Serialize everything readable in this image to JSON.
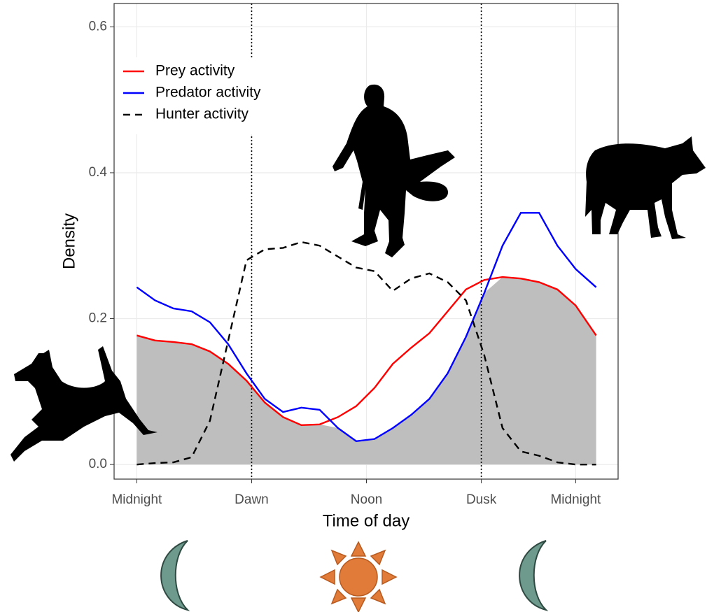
{
  "chart_data": {
    "type": "line",
    "x_label": "Time of day",
    "y_label": "Density",
    "xlim": [
      -0.31,
      6.58
    ],
    "ylim": [
      -0.02,
      0.632
    ],
    "xticks": [
      {
        "value": 0,
        "label": "Midnight"
      },
      {
        "value": 1.57,
        "label": "Dawn"
      },
      {
        "value": 3.14,
        "label": "Noon"
      },
      {
        "value": 4.71,
        "label": "Dusk"
      },
      {
        "value": 6.0,
        "label": "Midnight"
      }
    ],
    "yticks": [
      {
        "value": 0,
        "label": "0.0"
      },
      0.2,
      0.4,
      0.6
    ],
    "grid": true,
    "legend": "top-left",
    "overlap_color": "#bebebe",
    "x": [
      0,
      0.25,
      0.5,
      0.75,
      1.0,
      1.25,
      1.5,
      1.75,
      2.0,
      2.25,
      2.5,
      2.75,
      3.0,
      3.25,
      3.5,
      3.75,
      4.0,
      4.25,
      4.5,
      4.75,
      5.0,
      5.25,
      5.5,
      5.75,
      6.0,
      6.28
    ],
    "series": [
      {
        "name": "Prey activity",
        "color": "#ff0000",
        "dash": "solid",
        "values": [
          0.177,
          0.17,
          0.168,
          0.165,
          0.155,
          0.138,
          0.115,
          0.085,
          0.065,
          0.054,
          0.055,
          0.065,
          0.08,
          0.105,
          0.138,
          0.16,
          0.18,
          0.21,
          0.24,
          0.253,
          0.257,
          0.255,
          0.25,
          0.24,
          0.218,
          0.177
        ]
      },
      {
        "name": "Predator activity",
        "color": "#0000ff",
        "dash": "solid",
        "values": [
          0.243,
          0.225,
          0.214,
          0.21,
          0.195,
          0.165,
          0.125,
          0.09,
          0.072,
          0.078,
          0.075,
          0.05,
          0.032,
          0.035,
          0.05,
          0.068,
          0.09,
          0.125,
          0.175,
          0.235,
          0.3,
          0.345,
          0.345,
          0.3,
          0.268,
          0.243
        ]
      },
      {
        "name": "Hunter activity",
        "color": "#000000",
        "dash": "dashed",
        "values": [
          0.0,
          0.002,
          0.003,
          0.01,
          0.06,
          0.17,
          0.28,
          0.295,
          0.297,
          0.305,
          0.3,
          0.285,
          0.27,
          0.265,
          0.238,
          0.255,
          0.262,
          0.25,
          0.225,
          0.15,
          0.05,
          0.018,
          0.012,
          0.003,
          0.0,
          0.0
        ]
      }
    ],
    "vlines": [
      1.57,
      4.71
    ]
  }
}
